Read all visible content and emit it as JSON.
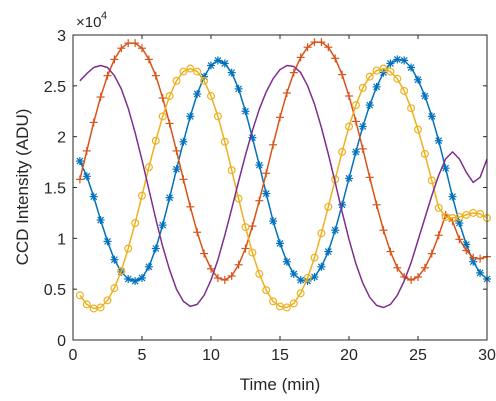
{
  "chart_data": {
    "type": "line",
    "title": "",
    "xlabel": "Time (min)",
    "ylabel": "CCD Intensity (ADU)",
    "xlim": [
      0,
      30
    ],
    "ylim": [
      0,
      30000
    ],
    "y_exponent_label": "×10",
    "y_exponent_power": "4",
    "xticks": [
      0,
      5,
      10,
      15,
      20,
      25,
      30
    ],
    "xtick_labels": [
      "0",
      "5",
      "10",
      "15",
      "20",
      "25",
      "30"
    ],
    "yticks": [
      0,
      5000,
      10000,
      15000,
      20000,
      25000,
      30000
    ],
    "ytick_labels": [
      "0",
      "0.5",
      "1",
      "1.5",
      "2",
      "2.5",
      "3"
    ],
    "grid": false,
    "legend": "none",
    "series": [
      {
        "color": "#0072BD",
        "marker": "asterisk",
        "x": [
          0.5,
          1.0,
          1.5,
          2.0,
          2.5,
          3.0,
          3.5,
          4.0,
          4.5,
          5.0,
          5.5,
          6.0,
          6.5,
          7.0,
          7.5,
          8.0,
          8.5,
          9.0,
          9.5,
          10.0,
          10.5,
          11.0,
          11.5,
          12.0,
          12.5,
          13.0,
          13.5,
          14.0,
          14.5,
          15.0,
          15.5,
          16.0,
          16.5,
          17.0,
          17.5,
          18.0,
          18.5,
          19.0,
          19.5,
          20.0,
          20.5,
          21.0,
          21.5,
          22.0,
          22.5,
          23.0,
          23.5,
          24.0,
          24.5,
          25.0,
          25.5,
          26.0,
          26.5,
          27.0,
          27.5,
          28.0,
          28.5,
          29.0,
          29.5,
          30.0
        ],
        "y": [
          17600,
          16100,
          14100,
          11800,
          9700,
          7900,
          6700,
          6000,
          5800,
          6100,
          7200,
          9000,
          11300,
          14000,
          16800,
          19500,
          22000,
          24200,
          25900,
          27000,
          27500,
          27200,
          26300,
          24700,
          22500,
          19900,
          17200,
          14400,
          11700,
          9500,
          7700,
          6500,
          5900,
          5800,
          6200,
          7200,
          8700,
          10800,
          13300,
          15900,
          18500,
          21000,
          23100,
          24900,
          26300,
          27200,
          27600,
          27500,
          26800,
          25600,
          24000,
          22000,
          19600,
          16900,
          14100,
          11500,
          9400,
          7700,
          6600,
          6000
        ]
      },
      {
        "color": "#D95319",
        "marker": "plus",
        "x": [
          0.5,
          1.0,
          1.5,
          2.0,
          2.5,
          3.0,
          3.5,
          4.0,
          4.5,
          5.0,
          5.5,
          6.0,
          6.5,
          7.0,
          7.5,
          8.0,
          8.5,
          9.0,
          9.5,
          10.0,
          10.5,
          11.0,
          11.5,
          12.0,
          12.5,
          13.0,
          13.5,
          14.0,
          14.5,
          15.0,
          15.5,
          16.0,
          16.5,
          17.0,
          17.5,
          18.0,
          18.5,
          19.0,
          19.5,
          20.0,
          20.5,
          21.0,
          21.5,
          22.0,
          22.5,
          23.0,
          23.5,
          24.0,
          24.5,
          25.0,
          25.5,
          26.0,
          26.5,
          27.0,
          27.5,
          28.0,
          28.5,
          29.0,
          29.5,
          30.0
        ],
        "y": [
          15800,
          18600,
          21400,
          23900,
          26000,
          27600,
          28700,
          29200,
          29200,
          28700,
          27600,
          26000,
          23800,
          21300,
          18600,
          15800,
          13100,
          10600,
          8500,
          7000,
          6100,
          5900,
          6300,
          7400,
          9000,
          11200,
          13700,
          16400,
          19200,
          21900,
          24300,
          26300,
          27800,
          28800,
          29300,
          29300,
          28800,
          27700,
          26100,
          24000,
          21500,
          18800,
          16000,
          13300,
          10800,
          8700,
          7100,
          6200,
          5900,
          6200,
          7100,
          8500,
          10300,
          12300,
          11700,
          9900,
          8800,
          8100,
          8000,
          8200
        ]
      },
      {
        "color": "#EDB120",
        "marker": "circle",
        "x": [
          0.5,
          1.0,
          1.5,
          2.0,
          2.5,
          3.0,
          3.5,
          4.0,
          4.5,
          5.0,
          5.5,
          6.0,
          6.5,
          7.0,
          7.5,
          8.0,
          8.5,
          9.0,
          9.5,
          10.0,
          10.5,
          11.0,
          11.5,
          12.0,
          12.5,
          13.0,
          13.5,
          14.0,
          14.5,
          15.0,
          15.5,
          16.0,
          16.5,
          17.0,
          17.5,
          18.0,
          18.5,
          19.0,
          19.5,
          20.0,
          20.5,
          21.0,
          21.5,
          22.0,
          22.5,
          23.0,
          23.5,
          24.0,
          24.5,
          25.0,
          25.5,
          26.0,
          26.5,
          27.0,
          27.5,
          28.0,
          28.5,
          29.0,
          29.5,
          30.0
        ],
        "y": [
          4400,
          3500,
          3100,
          3200,
          3900,
          5100,
          6800,
          9000,
          11500,
          14200,
          17000,
          19600,
          22000,
          24000,
          25500,
          26400,
          26700,
          26400,
          25500,
          24000,
          22000,
          19500,
          16700,
          13900,
          11100,
          8600,
          6500,
          4900,
          3800,
          3300,
          3200,
          3600,
          4600,
          6100,
          8100,
          10500,
          13100,
          15800,
          18500,
          21000,
          23100,
          24800,
          25900,
          26500,
          26700,
          26400,
          25700,
          24500,
          22800,
          20700,
          18300,
          15700,
          13000,
          12100,
          12000,
          12100,
          12300,
          12500,
          12400,
          12000
        ]
      },
      {
        "color": "#7E2F8E",
        "marker": "none",
        "x": [
          0.5,
          1.0,
          1.5,
          2.0,
          2.5,
          3.0,
          3.5,
          4.0,
          4.5,
          5.0,
          5.5,
          6.0,
          6.5,
          7.0,
          7.5,
          8.0,
          8.5,
          9.0,
          9.5,
          10.0,
          10.5,
          11.0,
          11.5,
          12.0,
          12.5,
          13.0,
          13.5,
          14.0,
          14.5,
          15.0,
          15.5,
          16.0,
          16.5,
          17.0,
          17.5,
          18.0,
          18.5,
          19.0,
          19.5,
          20.0,
          20.5,
          21.0,
          21.5,
          22.0,
          22.5,
          23.0,
          23.5,
          24.0,
          24.5,
          25.0,
          25.5,
          26.0,
          26.5,
          27.0,
          27.5,
          28.0,
          28.5,
          29.0,
          29.5,
          30.0
        ],
        "y": [
          25500,
          26200,
          26800,
          27000,
          26800,
          26000,
          24700,
          22800,
          20400,
          17700,
          14800,
          11900,
          9200,
          6900,
          5000,
          3800,
          3300,
          3500,
          4400,
          5900,
          7900,
          10300,
          12900,
          15600,
          18200,
          20600,
          22700,
          24400,
          25700,
          26600,
          27000,
          26900,
          26300,
          25000,
          23200,
          20900,
          18300,
          15500,
          12600,
          9900,
          7500,
          5600,
          4200,
          3400,
          3200,
          3500,
          4400,
          5800,
          7600,
          9800,
          12000,
          14200,
          16200,
          17800,
          18500,
          17800,
          16500,
          15500,
          16000,
          17800
        ]
      }
    ]
  }
}
